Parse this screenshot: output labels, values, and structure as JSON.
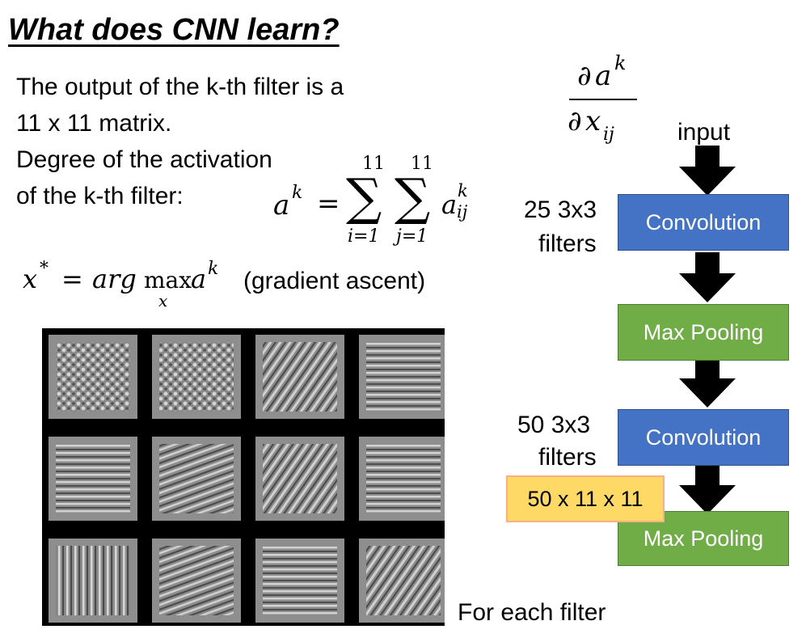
{
  "slide": {
    "title": "What does CNN learn?",
    "para1": [
      "The output of the k-th filter is a",
      "11 x 11 matrix."
    ],
    "para2": [
      "Degree of the activation",
      "of the k-th filter:"
    ],
    "equation_a": {
      "lhs": "a",
      "lhs_sup": "k",
      "equals": "=",
      "sum1_top": "11",
      "sum1_bottom": "i=1",
      "sum2_top": "11",
      "sum2_bottom": "j=1",
      "term": "a",
      "term_sup": "k",
      "term_sub": "ij",
      "sigma": "∑"
    },
    "equation_x": {
      "lhs": "x",
      "lhs_sup": "*",
      "equals": "=",
      "argmax": "arg",
      "max": "max",
      "max_sub": "x",
      "rhs": "a",
      "rhs_sup": "k",
      "note": "(gradient ascent)"
    },
    "derivative": {
      "num_partial": "∂",
      "num": "a",
      "num_sup": "k",
      "den_partial": "∂",
      "den": "x",
      "den_sub": "ij"
    },
    "caption": "For each filter"
  },
  "pipeline": {
    "input_label": "input",
    "layers": [
      {
        "label": "Convolution",
        "kind": "conv",
        "side_note": [
          "25 3x3",
          "filters"
        ]
      },
      {
        "label": "Max Pooling",
        "kind": "pool"
      },
      {
        "label": "Convolution",
        "kind": "conv",
        "side_note": [
          "50 3x3",
          "filters"
        ]
      },
      {
        "label": "Max Pooling",
        "kind": "pool"
      }
    ],
    "output_shape": "50 x 11 x 11",
    "colors": {
      "conv": "#4472C4",
      "pool": "#70AD47",
      "highlight": "#FFD966",
      "highlight_border": "#F4B183"
    }
  },
  "filter_images": {
    "rows": 3,
    "cols": 4,
    "tiles": [
      {
        "pattern": "blobs"
      },
      {
        "pattern": "blobs"
      },
      {
        "pattern": "diagonal-right"
      },
      {
        "pattern": "horizontal"
      },
      {
        "pattern": "horizontal"
      },
      {
        "pattern": "diagonal-left"
      },
      {
        "pattern": "diagonal-right"
      },
      {
        "pattern": "horizontal"
      },
      {
        "pattern": "vertical"
      },
      {
        "pattern": "diagonal-left"
      },
      {
        "pattern": "horizontal"
      },
      {
        "pattern": "diagonal-right"
      }
    ]
  }
}
